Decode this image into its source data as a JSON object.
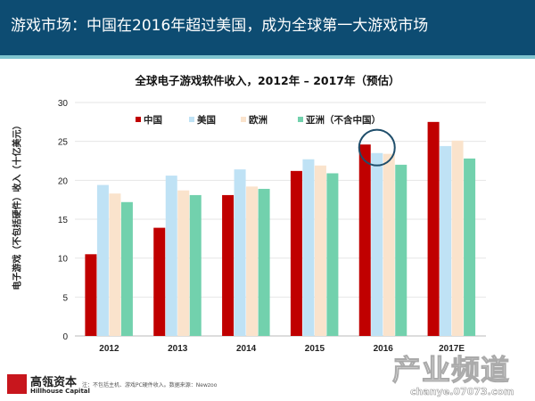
{
  "header": {
    "title": "游戏市场：中国在2016年超过美国，成为全球第一大游戏市场"
  },
  "footer": {
    "logo_cn": "高瓴资本",
    "logo_en": "Hillhouse Capital",
    "note": "注：不包括主机、游戏PC硬件收入。数据来源：Newzoo",
    "watermark_cn": "产业频道",
    "watermark_en": "chanye.07073.com"
  },
  "chart_data": {
    "type": "bar",
    "title": "全球电子游戏软件收入，2012年 – 2017年（预估）",
    "ylabel": "电子游戏（不包括硬件）收入（十亿美元）",
    "xlabel": "",
    "ylim": [
      0,
      30
    ],
    "yticks": [
      "0",
      "5",
      "10",
      "15",
      "20",
      "25",
      "30"
    ],
    "grid": true,
    "legend": "top",
    "categories": [
      "2012",
      "2013",
      "2014",
      "2015",
      "2016",
      "2017E"
    ],
    "series": [
      {
        "name": "中国",
        "color": "#c00000",
        "values": [
          10.5,
          13.9,
          18.1,
          21.2,
          24.6,
          27.5
        ]
      },
      {
        "name": "美国",
        "color": "#bfe2f5",
        "values": [
          19.4,
          20.6,
          21.4,
          22.7,
          23.5,
          24.4
        ]
      },
      {
        "name": "欧洲",
        "color": "#fae3cc",
        "values": [
          18.3,
          18.7,
          19.2,
          21.9,
          23.4,
          25.1
        ]
      },
      {
        "name": "亚洲（不含中国）",
        "color": "#72d1ad",
        "values": [
          17.2,
          18.1,
          18.9,
          20.9,
          22.0,
          22.8
        ]
      }
    ],
    "annotation": "circle highlighting 2016 China vs US"
  }
}
